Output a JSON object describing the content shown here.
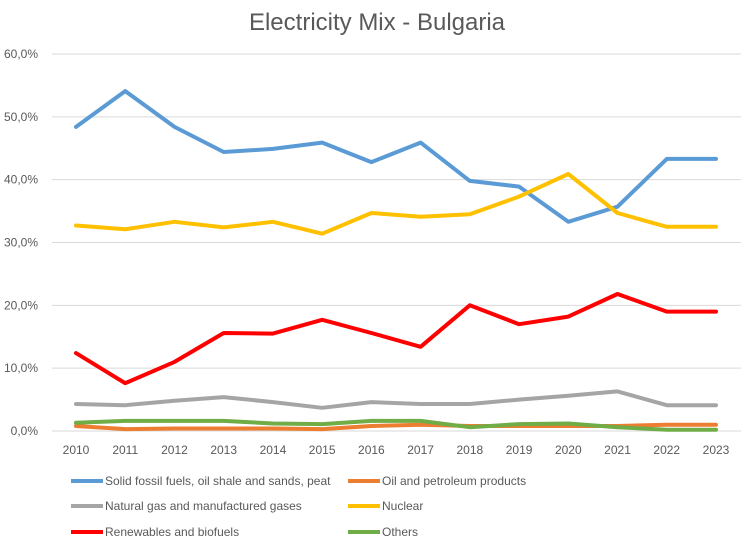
{
  "chart_data": {
    "type": "line",
    "title": "Electricity Mix - Bulgaria",
    "xlabel": "",
    "ylabel": "",
    "x": [
      "2010",
      "2011",
      "2012",
      "2013",
      "2014",
      "2015",
      "2016",
      "2017",
      "2018",
      "2019",
      "2020",
      "2021",
      "2022",
      "2023"
    ],
    "ylim": [
      0,
      60
    ],
    "yticks": [
      0,
      10,
      20,
      30,
      40,
      50,
      60
    ],
    "ytick_labels": [
      "0,0%",
      "10,0%",
      "20,0%",
      "30,0%",
      "40,0%",
      "50,0%",
      "60,0%"
    ],
    "grid": true,
    "legend_position": "bottom",
    "series": [
      {
        "name": "Solid fossil fuels, oil shale and sands, peat",
        "color": "#5B9BD5",
        "values": [
          48.4,
          54.1,
          48.4,
          44.4,
          44.9,
          45.9,
          42.8,
          45.9,
          39.8,
          38.9,
          33.3,
          35.7,
          43.3,
          43.3
        ]
      },
      {
        "name": "Oil and petroleum products",
        "color": "#ED7D31",
        "values": [
          0.8,
          0.3,
          0.4,
          0.4,
          0.4,
          0.3,
          0.8,
          1.0,
          0.8,
          0.8,
          0.8,
          0.8,
          1.0,
          1.0
        ]
      },
      {
        "name": "Natural gas and manufactured gases",
        "color": "#A5A5A5",
        "values": [
          4.3,
          4.1,
          4.8,
          5.4,
          4.6,
          3.7,
          4.6,
          4.3,
          4.3,
          5.0,
          5.6,
          6.3,
          4.1,
          4.1
        ]
      },
      {
        "name": "Nuclear",
        "color": "#FFC000",
        "values": [
          32.7,
          32.1,
          33.3,
          32.4,
          33.3,
          31.4,
          34.7,
          34.1,
          34.5,
          37.3,
          40.9,
          34.7,
          32.5,
          32.5
        ]
      },
      {
        "name": "Renewables and biofuels",
        "color": "#FF0000",
        "values": [
          12.4,
          7.6,
          11.0,
          15.6,
          15.5,
          17.7,
          15.6,
          13.4,
          20.0,
          17.0,
          18.2,
          21.8,
          19.0,
          19.0
        ]
      },
      {
        "name": "Others",
        "color": "#70AD47",
        "values": [
          1.3,
          1.6,
          1.6,
          1.6,
          1.2,
          1.1,
          1.6,
          1.6,
          0.6,
          1.1,
          1.2,
          0.6,
          0.2,
          0.2
        ]
      }
    ]
  }
}
